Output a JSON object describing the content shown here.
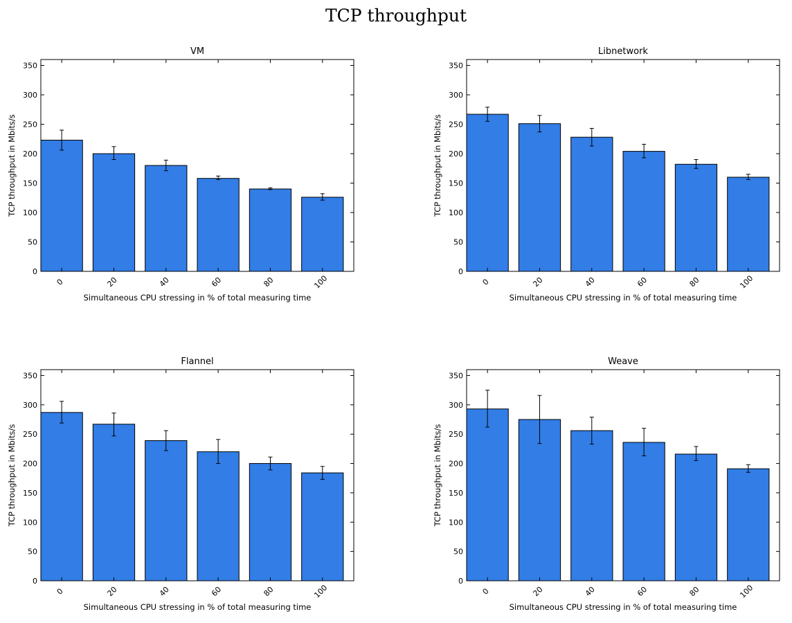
{
  "figure_title": "TCP throughput",
  "colors": {
    "bar_fill": "#327de6",
    "bar_edge": "#000000",
    "error_bar": "#000000"
  },
  "chart_data": [
    {
      "type": "bar",
      "title": "VM",
      "xlabel": "Simultaneous CPU stressing in % of total measuring time",
      "ylabel": "TCP throughput in Mbits/s",
      "categories": [
        "0",
        "20",
        "40",
        "60",
        "80",
        "100"
      ],
      "values": [
        223,
        200,
        180,
        158,
        140,
        126
      ],
      "error_low": [
        206,
        190,
        171,
        156,
        139,
        121
      ],
      "error_high": [
        240,
        212,
        189,
        162,
        142,
        132
      ],
      "ylim": [
        0,
        360
      ],
      "yticks": [
        "0",
        "50",
        "100",
        "150",
        "200",
        "250",
        "300",
        "350"
      ],
      "grid": false
    },
    {
      "type": "bar",
      "title": "Libnetwork",
      "xlabel": "Simultaneous CPU stressing in % of total measuring time",
      "ylabel": "TCP throughput in Mbits/s",
      "categories": [
        "0",
        "20",
        "40",
        "60",
        "80",
        "100"
      ],
      "values": [
        267,
        251,
        228,
        204,
        182,
        160
      ],
      "error_low": [
        255,
        237,
        213,
        193,
        175,
        156
      ],
      "error_high": [
        279,
        265,
        243,
        216,
        190,
        165
      ],
      "ylim": [
        0,
        360
      ],
      "yticks": [
        "0",
        "50",
        "100",
        "150",
        "200",
        "250",
        "300",
        "350"
      ],
      "grid": false
    },
    {
      "type": "bar",
      "title": "Flannel",
      "xlabel": "Simultaneous CPU stressing in % of total measuring time",
      "ylabel": "TCP throughput in Mbits/s",
      "categories": [
        "0",
        "20",
        "40",
        "60",
        "80",
        "100"
      ],
      "values": [
        287,
        267,
        239,
        220,
        200,
        184
      ],
      "error_low": [
        269,
        247,
        222,
        200,
        189,
        173
      ],
      "error_high": [
        306,
        286,
        256,
        241,
        211,
        195
      ],
      "ylim": [
        0,
        360
      ],
      "yticks": [
        "0",
        "50",
        "100",
        "150",
        "200",
        "250",
        "300",
        "350"
      ],
      "grid": false
    },
    {
      "type": "bar",
      "title": "Weave",
      "xlabel": "Simultaneous CPU stressing in % of total measuring time",
      "ylabel": "TCP throughput in Mbits/s",
      "categories": [
        "0",
        "20",
        "40",
        "60",
        "80",
        "100"
      ],
      "values": [
        293,
        275,
        256,
        236,
        216,
        191
      ],
      "error_low": [
        262,
        234,
        233,
        213,
        205,
        185
      ],
      "error_high": [
        325,
        316,
        279,
        260,
        229,
        198
      ],
      "ylim": [
        0,
        360
      ],
      "yticks": [
        "0",
        "50",
        "100",
        "150",
        "200",
        "250",
        "300",
        "350"
      ],
      "grid": false
    }
  ]
}
